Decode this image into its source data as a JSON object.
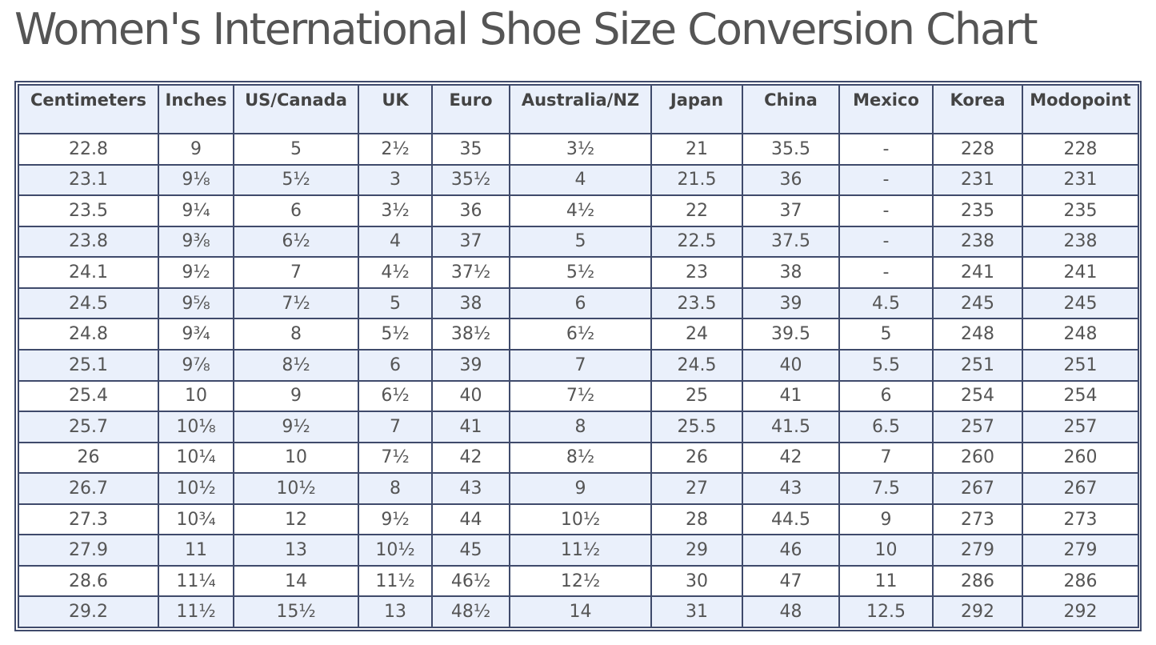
{
  "page": {
    "title": "Women's International Shoe Size Conversion Chart"
  },
  "colors": {
    "header_bg": "#eaf0fb",
    "alt_row_bg": "#eaf0fb",
    "row_bg": "#ffffff",
    "border": "#3f4a6b",
    "text": "#555555"
  },
  "table": {
    "columns": [
      "Centimeters",
      "Inches",
      "US/Canada",
      "UK",
      "Euro",
      "Australia/NZ",
      "Japan",
      "China",
      "Mexico",
      "Korea",
      "Modopoint"
    ],
    "rows": [
      [
        "22.8",
        "9",
        "5",
        "2½",
        "35",
        "3½",
        "21",
        "35.5",
        "-",
        "228",
        "228"
      ],
      [
        "23.1",
        "9⅛",
        "5½",
        "3",
        "35½",
        "4",
        "21.5",
        "36",
        "-",
        "231",
        "231"
      ],
      [
        "23.5",
        "9¼",
        "6",
        "3½",
        "36",
        "4½",
        "22",
        "37",
        "-",
        "235",
        "235"
      ],
      [
        "23.8",
        "9⅜",
        "6½",
        "4",
        "37",
        "5",
        "22.5",
        "37.5",
        "-",
        "238",
        "238"
      ],
      [
        "24.1",
        "9½",
        "7",
        "4½",
        "37½",
        "5½",
        "23",
        "38",
        "-",
        "241",
        "241"
      ],
      [
        "24.5",
        "9⅝",
        "7½",
        "5",
        "38",
        "6",
        "23.5",
        "39",
        "4.5",
        "245",
        "245"
      ],
      [
        "24.8",
        "9¾",
        "8",
        "5½",
        "38½",
        "6½",
        "24",
        "39.5",
        "5",
        "248",
        "248"
      ],
      [
        "25.1",
        "9⅞",
        "8½",
        "6",
        "39",
        "7",
        "24.5",
        "40",
        "5.5",
        "251",
        "251"
      ],
      [
        "25.4",
        "10",
        "9",
        "6½",
        "40",
        "7½",
        "25",
        "41",
        "6",
        "254",
        "254"
      ],
      [
        "25.7",
        "10⅛",
        "9½",
        "7",
        "41",
        "8",
        "25.5",
        "41.5",
        "6.5",
        "257",
        "257"
      ],
      [
        "26",
        "10¼",
        "10",
        "7½",
        "42",
        "8½",
        "26",
        "42",
        "7",
        "260",
        "260"
      ],
      [
        "26.7",
        "10½",
        "10½",
        "8",
        "43",
        "9",
        "27",
        "43",
        "7.5",
        "267",
        "267"
      ],
      [
        "27.3",
        "10¾",
        "12",
        "9½",
        "44",
        "10½",
        "28",
        "44.5",
        "9",
        "273",
        "273"
      ],
      [
        "27.9",
        "11",
        "13",
        "10½",
        "45",
        "11½",
        "29",
        "46",
        "10",
        "279",
        "279"
      ],
      [
        "28.6",
        "11¼",
        "14",
        "11½",
        "46½",
        "12½",
        "30",
        "47",
        "11",
        "286",
        "286"
      ],
      [
        "29.2",
        "11½",
        "15½",
        "13",
        "48½",
        "14",
        "31",
        "48",
        "12.5",
        "292",
        "292"
      ]
    ]
  }
}
